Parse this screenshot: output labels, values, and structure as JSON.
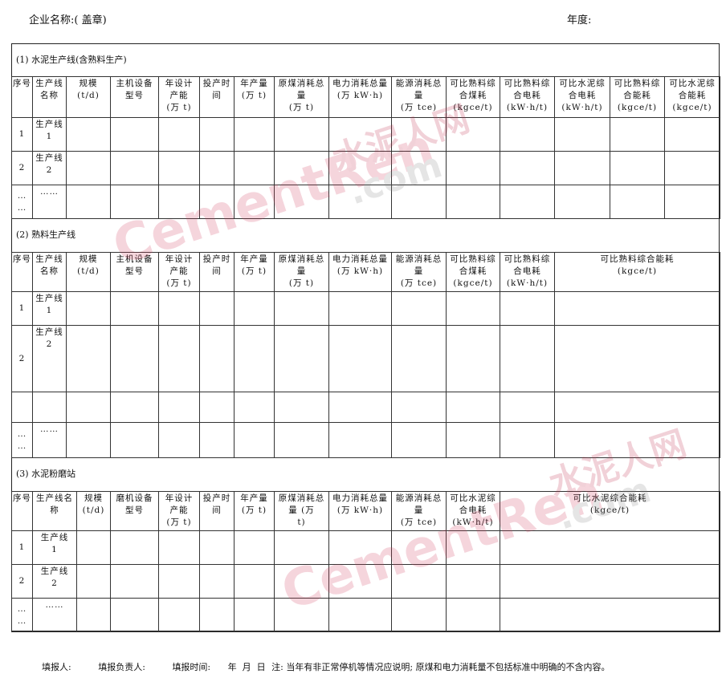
{
  "header": {
    "company_label": "企业名称:( 盖章)",
    "year_label": "年度:"
  },
  "sections": [
    {
      "title": "(1) 水泥生产线(含熟料生产)",
      "headers": [
        "序号",
        "生产线\n名称",
        "规模\n(t/d)",
        "主机设备\n型号",
        "年设计\n产能\n(万 t)",
        "投产时\n间",
        "年产量\n(万 t)",
        "原煤消耗总\n量\n(万 t)",
        "电力消耗总量\n(万 kW·h)",
        "能源消耗总\n量\n(万 tce)",
        "可比熟料综\n合煤耗\n(kgce/t)",
        "可比熟料综\n合电耗\n(kW·h/t)",
        "可比水泥综\n合电耗\n(kW·h/t)",
        "可比熟料综\n合能耗\n(kgce/t)",
        "可比水泥综\n合能耗\n(kgce/t)"
      ],
      "rows": [
        [
          "1",
          "生产线\n1"
        ],
        [
          "2",
          "生产线\n2"
        ],
        [
          "…\n…",
          "……"
        ]
      ]
    },
    {
      "title": "(2) 熟料生产线",
      "headers": [
        "序号",
        "生产线\n名称",
        "规模\n(t/d)",
        "主机设备\n型号",
        "年设计\n产能\n(万 t)",
        "投产时\n间",
        "年产量\n(万 t)",
        "原煤消耗总\n量\n(万 t)",
        "电力消耗总量\n(万 kW·h)",
        "能源消耗总\n量\n(万 tce)",
        "可比熟料综\n合煤耗\n(kgce/t)",
        "可比熟料综\n合电耗\n(kW·h/t)",
        "可比熟料综合能耗\n(kgce/t)"
      ],
      "rows": [
        [
          "1",
          "生产线\n1"
        ],
        [
          "2",
          "生产线\n2"
        ],
        [
          "",
          ""
        ],
        [
          "…\n…",
          "……"
        ]
      ]
    },
    {
      "title": "(3) 水泥粉磨站",
      "headers": [
        "序号",
        "生产线名\n称",
        "规模\n(t/d)",
        "磨机设备\n型号",
        "年设计\n产能\n(万 t)",
        "投产时\n间",
        "年产量\n(万 t)",
        "原煤消耗总\n量 (万\nt)",
        "电力消耗总量\n(万 kW·h)",
        "能源消耗总\n量\n(万 tce)",
        "可比水泥综\n合电耗\n(kW·h/t)",
        "可比水泥综合能耗\n(kgce/t)"
      ],
      "rows": [
        [
          "1",
          "生产线\n1"
        ],
        [
          "2",
          "生产线\n2"
        ],
        [
          "…\n…",
          "……"
        ]
      ]
    }
  ],
  "footer": {
    "filler": "填报人:",
    "responsible": "填报负责人:",
    "time": "填报时间:",
    "date": "年  月  日",
    "note": "注: 当年有非正常停机等情况应说明; 原煤和电力消耗量不包括标准中明确的不含内容。"
  },
  "watermark": {
    "text1": "CementRen",
    "text2": "水泥人网",
    "text3": ".com"
  }
}
